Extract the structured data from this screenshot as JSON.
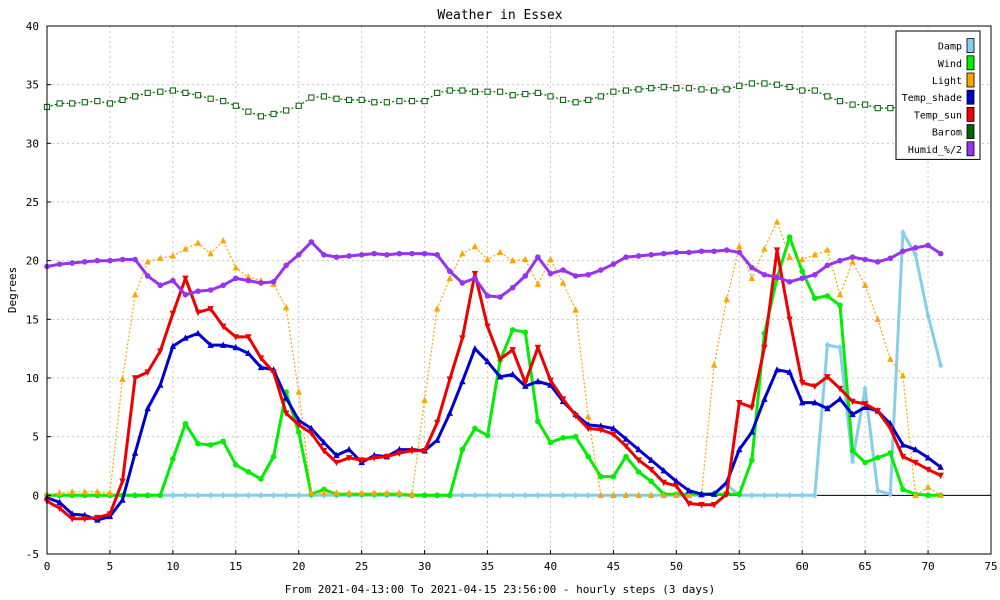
{
  "chart_data": {
    "type": "line",
    "title": "Weather in Essex",
    "xlabel": "From 2021-04-13:00 To 2021-04-15 23:56:00 - hourly steps (3 days)",
    "ylabel": "Degrees",
    "xlim": [
      0,
      75
    ],
    "ylim": [
      -5,
      40
    ],
    "xticks": [
      0,
      5,
      10,
      15,
      20,
      25,
      30,
      35,
      40,
      45,
      50,
      55,
      60,
      65,
      70,
      75
    ],
    "yticks": [
      -5,
      0,
      5,
      10,
      15,
      20,
      25,
      30,
      35,
      40
    ],
    "grid": true,
    "legend_position": "top-right",
    "series": [
      {
        "name": "Damp",
        "color": "#87ceeb",
        "marker": "diamond",
        "line": "solid",
        "values": [
          0,
          0,
          0,
          0,
          0,
          0,
          0,
          0,
          0,
          0,
          0,
          0,
          0,
          0,
          0,
          0,
          0,
          0,
          0,
          0,
          0,
          0,
          0,
          0,
          0,
          0,
          0,
          0,
          0,
          0,
          0,
          0,
          0,
          0,
          0,
          0,
          0,
          0,
          0,
          0,
          0,
          0,
          0,
          0,
          0,
          0,
          0,
          0,
          0,
          0,
          0,
          0,
          0,
          0.2,
          0.9,
          0,
          0,
          0,
          0,
          0,
          0,
          0,
          12.8,
          12.6,
          2.9,
          9.1,
          0.4,
          0.1,
          22.4,
          20.5,
          15.3,
          11.1
        ]
      },
      {
        "name": "Wind",
        "color": "#00ee00",
        "marker": "circle",
        "line": "solid",
        "values": [
          0,
          0,
          0,
          0,
          0,
          0,
          0,
          0,
          0,
          0,
          3.1,
          6.1,
          4.4,
          4.3,
          4.6,
          2.6,
          2.0,
          1.4,
          3.3,
          8.8,
          5.4,
          0.1,
          0.5,
          0.1,
          0.1,
          0.1,
          0.1,
          0.1,
          0.1,
          0,
          0,
          0,
          0,
          3.9,
          5.7,
          5.1,
          11.5,
          14.1,
          13.9,
          6.3,
          4.5,
          4.9,
          5.0,
          3.3,
          1.6,
          1.6,
          3.3,
          2.0,
          1.2,
          0.1,
          0.1,
          0.1,
          0.1,
          0.1,
          0.1,
          0.1,
          3.0,
          13.8,
          18.5,
          22.0,
          19.1,
          16.8,
          17.0,
          16.2,
          3.8,
          2.8,
          3.2,
          3.6,
          0.5,
          0.1,
          0,
          0
        ]
      },
      {
        "name": "Light",
        "color": "#ffa500",
        "marker": "triangle-up",
        "line": "dotted",
        "values": [
          0,
          0.2,
          0.3,
          0.3,
          0.3,
          0.2,
          9.9,
          17.1,
          19.9,
          20.2,
          20.4,
          21.0,
          21.5,
          20.6,
          21.7,
          19.4,
          18.6,
          18.3,
          18.0,
          16.0,
          8.8,
          0.2,
          0.2,
          0.2,
          0.2,
          0.2,
          0.2,
          0.2,
          0.2,
          0.1,
          8.1,
          15.9,
          18.5,
          20.6,
          21.2,
          20.1,
          20.7,
          20.0,
          20.1,
          18.0,
          20.1,
          18.1,
          15.8,
          6.7,
          0,
          0,
          0,
          0,
          0,
          0,
          0,
          0,
          0,
          11.1,
          16.7,
          21.2,
          18.5,
          21.0,
          23.3,
          20.3,
          20.1,
          20.5,
          20.9,
          17.1,
          19.9,
          17.9,
          15.0,
          11.6,
          10.2,
          0,
          0.7,
          0
        ]
      },
      {
        "name": "Temp_shade",
        "color": "#0000cc",
        "marker": "triangle-up",
        "line": "solid",
        "values": [
          -0.2,
          -0.6,
          -1.6,
          -1.7,
          -2.1,
          -1.8,
          -0.4,
          3.6,
          7.4,
          9.4,
          12.7,
          13.4,
          13.8,
          12.8,
          12.8,
          12.6,
          12.1,
          10.9,
          10.7,
          8.3,
          6.4,
          5.7,
          4.5,
          3.4,
          3.9,
          2.8,
          3.4,
          3.3,
          3.9,
          3.9,
          3.8,
          4.7,
          7.0,
          9.7,
          12.5,
          11.4,
          10.1,
          10.3,
          9.3,
          9.7,
          9.4,
          8.0,
          6.9,
          6.0,
          5.9,
          5.7,
          4.8,
          3.9,
          3.0,
          2.1,
          1.2,
          0.4,
          0.1,
          0.1,
          1.1,
          3.9,
          5.4,
          8.2,
          10.7,
          10.5,
          7.9,
          7.9,
          7.4,
          8.2,
          6.9,
          7.5,
          7.2,
          6.1,
          4.3,
          3.9,
          3.2,
          2.4
        ]
      },
      {
        "name": "Temp_sun",
        "color": "#ee0000",
        "marker": "triangle-down",
        "line": "solid",
        "values": [
          -0.5,
          -1.1,
          -2.0,
          -2.0,
          -1.9,
          -1.6,
          1.2,
          10.0,
          10.5,
          12.3,
          15.5,
          18.5,
          15.6,
          15.9,
          14.4,
          13.5,
          13.5,
          11.7,
          10.5,
          7.0,
          6.0,
          5.3,
          3.8,
          2.8,
          3.2,
          3.0,
          3.2,
          3.3,
          3.6,
          3.8,
          3.8,
          6.2,
          9.9,
          13.4,
          18.9,
          14.4,
          11.6,
          12.4,
          9.6,
          12.6,
          9.8,
          8.2,
          6.8,
          5.7,
          5.6,
          5.2,
          4.2,
          3.0,
          2.2,
          1.1,
          0.8,
          -0.7,
          -0.8,
          -0.8,
          0.1,
          7.9,
          7.5,
          12.6,
          20.9,
          15.0,
          9.6,
          9.3,
          10.1,
          9.1,
          8.0,
          7.8,
          7.2,
          5.7,
          3.3,
          2.8,
          2.2,
          1.7
        ]
      },
      {
        "name": "Barom",
        "color": "#006400",
        "marker": "square",
        "line": "dotted",
        "values": [
          33.1,
          33.4,
          33.4,
          33.5,
          33.6,
          33.4,
          33.7,
          34.0,
          34.3,
          34.4,
          34.5,
          34.3,
          34.1,
          33.8,
          33.6,
          33.2,
          32.7,
          32.3,
          32.5,
          32.8,
          33.2,
          33.9,
          34.0,
          33.8,
          33.7,
          33.7,
          33.5,
          33.5,
          33.6,
          33.6,
          33.6,
          34.3,
          34.5,
          34.5,
          34.4,
          34.4,
          34.4,
          34.1,
          34.2,
          34.3,
          34.0,
          33.7,
          33.5,
          33.7,
          34.0,
          34.4,
          34.5,
          34.6,
          34.7,
          34.8,
          34.7,
          34.7,
          34.6,
          34.5,
          34.6,
          34.9,
          35.1,
          35.1,
          35.0,
          34.8,
          34.5,
          34.5,
          34.0,
          33.6,
          33.3,
          33.3,
          33.0,
          33.0,
          33.1,
          33.3,
          33.2,
          33.2
        ]
      },
      {
        "name": "Humid_%/2",
        "color": "#9933ee",
        "marker": "circle",
        "line": "solid",
        "values": [
          19.5,
          19.7,
          19.8,
          19.9,
          20.0,
          20.0,
          20.1,
          20.1,
          18.7,
          17.9,
          18.3,
          17.1,
          17.4,
          17.5,
          17.9,
          18.5,
          18.3,
          18.1,
          18.2,
          19.6,
          20.5,
          21.6,
          20.5,
          20.3,
          20.4,
          20.5,
          20.6,
          20.5,
          20.6,
          20.6,
          20.6,
          20.5,
          19.1,
          18.1,
          18.5,
          17.0,
          16.9,
          17.7,
          18.7,
          20.3,
          18.9,
          19.2,
          18.7,
          18.8,
          19.2,
          19.7,
          20.3,
          20.4,
          20.5,
          20.6,
          20.7,
          20.7,
          20.8,
          20.8,
          20.9,
          20.7,
          19.4,
          18.8,
          18.6,
          18.2,
          18.5,
          18.8,
          19.6,
          20.0,
          20.3,
          20.1,
          19.9,
          20.2,
          20.8,
          21.1,
          21.3,
          20.6
        ]
      }
    ]
  }
}
